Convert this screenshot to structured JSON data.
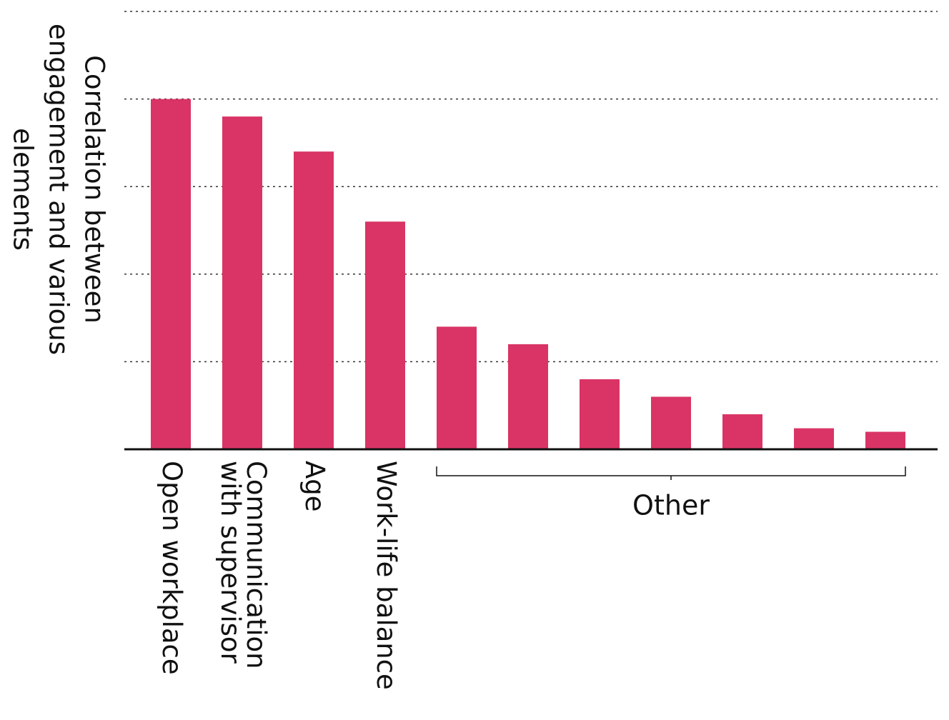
{
  "chart_data": {
    "type": "bar",
    "ylabel": [
      "Correlation between",
      "engagement and various",
      "elements"
    ],
    "categories": [
      "Open workplace",
      "Communication\nwith supervisor",
      "Age",
      "Work-life balance",
      null,
      null,
      null,
      null,
      null,
      null,
      null
    ],
    "values": [
      4.0,
      3.8,
      3.4,
      2.6,
      1.4,
      1.2,
      0.8,
      0.6,
      0.4,
      0.24,
      0.2
    ],
    "color": "#d93465",
    "annotation": "Other",
    "ylim": [
      0,
      5
    ],
    "yticks": [
      0,
      1,
      2,
      3,
      4,
      5
    ],
    "grid": true
  }
}
